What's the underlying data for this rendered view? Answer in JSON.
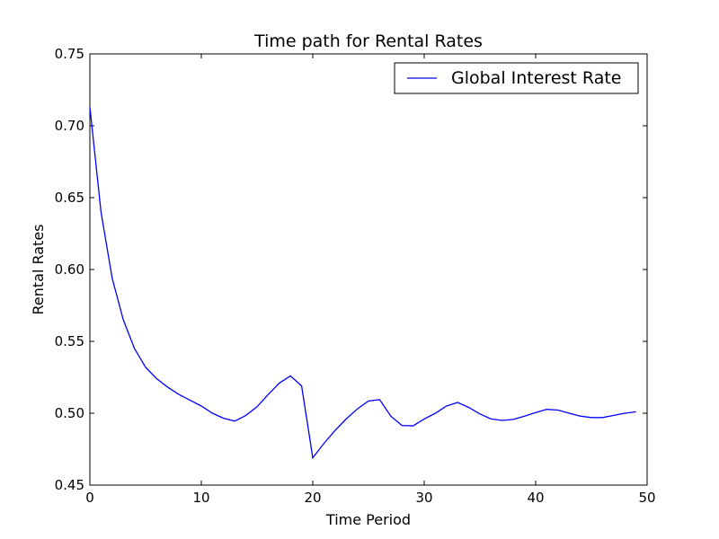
{
  "chart_data": {
    "type": "line",
    "title": "Time path for Rental Rates",
    "xlabel": "Time Period",
    "ylabel": "Rental Rates",
    "xlim": [
      0,
      50
    ],
    "ylim": [
      0.45,
      0.75
    ],
    "xticks": [
      0,
      10,
      20,
      30,
      40,
      50
    ],
    "xtick_labels": [
      "0",
      "10",
      "20",
      "30",
      "40",
      "50"
    ],
    "yticks": [
      0.45,
      0.5,
      0.55,
      0.6,
      0.65,
      0.7,
      0.75
    ],
    "ytick_labels": [
      "0.45",
      "0.50",
      "0.55",
      "0.60",
      "0.65",
      "0.70",
      "0.75"
    ],
    "grid": false,
    "legend_position": "top-right",
    "series": [
      {
        "name": "Global Interest Rate",
        "color": "#0000ff",
        "x": [
          0,
          1,
          2,
          3,
          4,
          5,
          6,
          7,
          8,
          9,
          10,
          11,
          12,
          13,
          14,
          15,
          16,
          17,
          18,
          19,
          20,
          21,
          22,
          23,
          24,
          25,
          26,
          27,
          28,
          29,
          30,
          31,
          32,
          33,
          34,
          35,
          36,
          37,
          38,
          39,
          40,
          41,
          42,
          43,
          44,
          45,
          46,
          47,
          48,
          49
        ],
        "y": [
          0.713,
          0.64,
          0.594,
          0.565,
          0.545,
          0.532,
          0.524,
          0.518,
          0.513,
          0.509,
          0.505,
          0.5,
          0.4965,
          0.4945,
          0.4985,
          0.5045,
          0.513,
          0.521,
          0.526,
          0.519,
          0.469,
          0.479,
          0.488,
          0.496,
          0.503,
          0.5085,
          0.5095,
          0.498,
          0.4915,
          0.4912,
          0.496,
          0.5,
          0.505,
          0.5075,
          0.504,
          0.4995,
          0.496,
          0.495,
          0.4957,
          0.498,
          0.5005,
          0.5027,
          0.5022,
          0.5,
          0.498,
          0.497,
          0.497,
          0.4985,
          0.5,
          0.501
        ]
      }
    ]
  }
}
